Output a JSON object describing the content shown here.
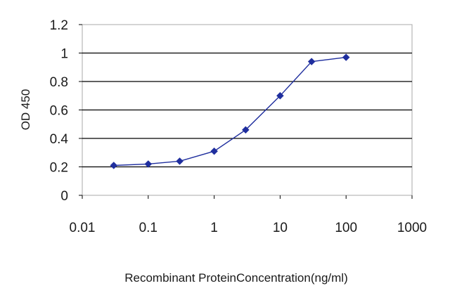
{
  "chart_data": {
    "type": "line",
    "xlabel": "Recombinant ProteinConcentration(ng/ml)",
    "ylabel": "OD 450",
    "xscale": "log",
    "xlim": [
      0.01,
      1000
    ],
    "ylim": [
      0,
      1.2
    ],
    "x_ticks": [
      {
        "value": 0.01,
        "label": "0.01"
      },
      {
        "value": 0.1,
        "label": "0.1"
      },
      {
        "value": 1,
        "label": "1"
      },
      {
        "value": 10,
        "label": "10"
      },
      {
        "value": 100,
        "label": "100"
      },
      {
        "value": 1000,
        "label": "1000"
      }
    ],
    "y_ticks": [
      {
        "value": 0,
        "label": "0"
      },
      {
        "value": 0.2,
        "label": "0.2"
      },
      {
        "value": 0.4,
        "label": "0.4"
      },
      {
        "value": 0.6,
        "label": "0.6"
      },
      {
        "value": 0.8,
        "label": "0.8"
      },
      {
        "value": 1,
        "label": "1"
      },
      {
        "value": 1.2,
        "label": "1.2"
      }
    ],
    "grid": "horizontal",
    "legend": "none",
    "series": [
      {
        "color": "#1f2e9e",
        "marker": "diamond",
        "points": [
          {
            "x": 0.03,
            "y": 0.21
          },
          {
            "x": 0.1,
            "y": 0.22
          },
          {
            "x": 0.3,
            "y": 0.24
          },
          {
            "x": 1,
            "y": 0.31
          },
          {
            "x": 3,
            "y": 0.46
          },
          {
            "x": 10,
            "y": 0.7
          },
          {
            "x": 30,
            "y": 0.94
          },
          {
            "x": 100,
            "y": 0.97
          }
        ]
      }
    ]
  }
}
